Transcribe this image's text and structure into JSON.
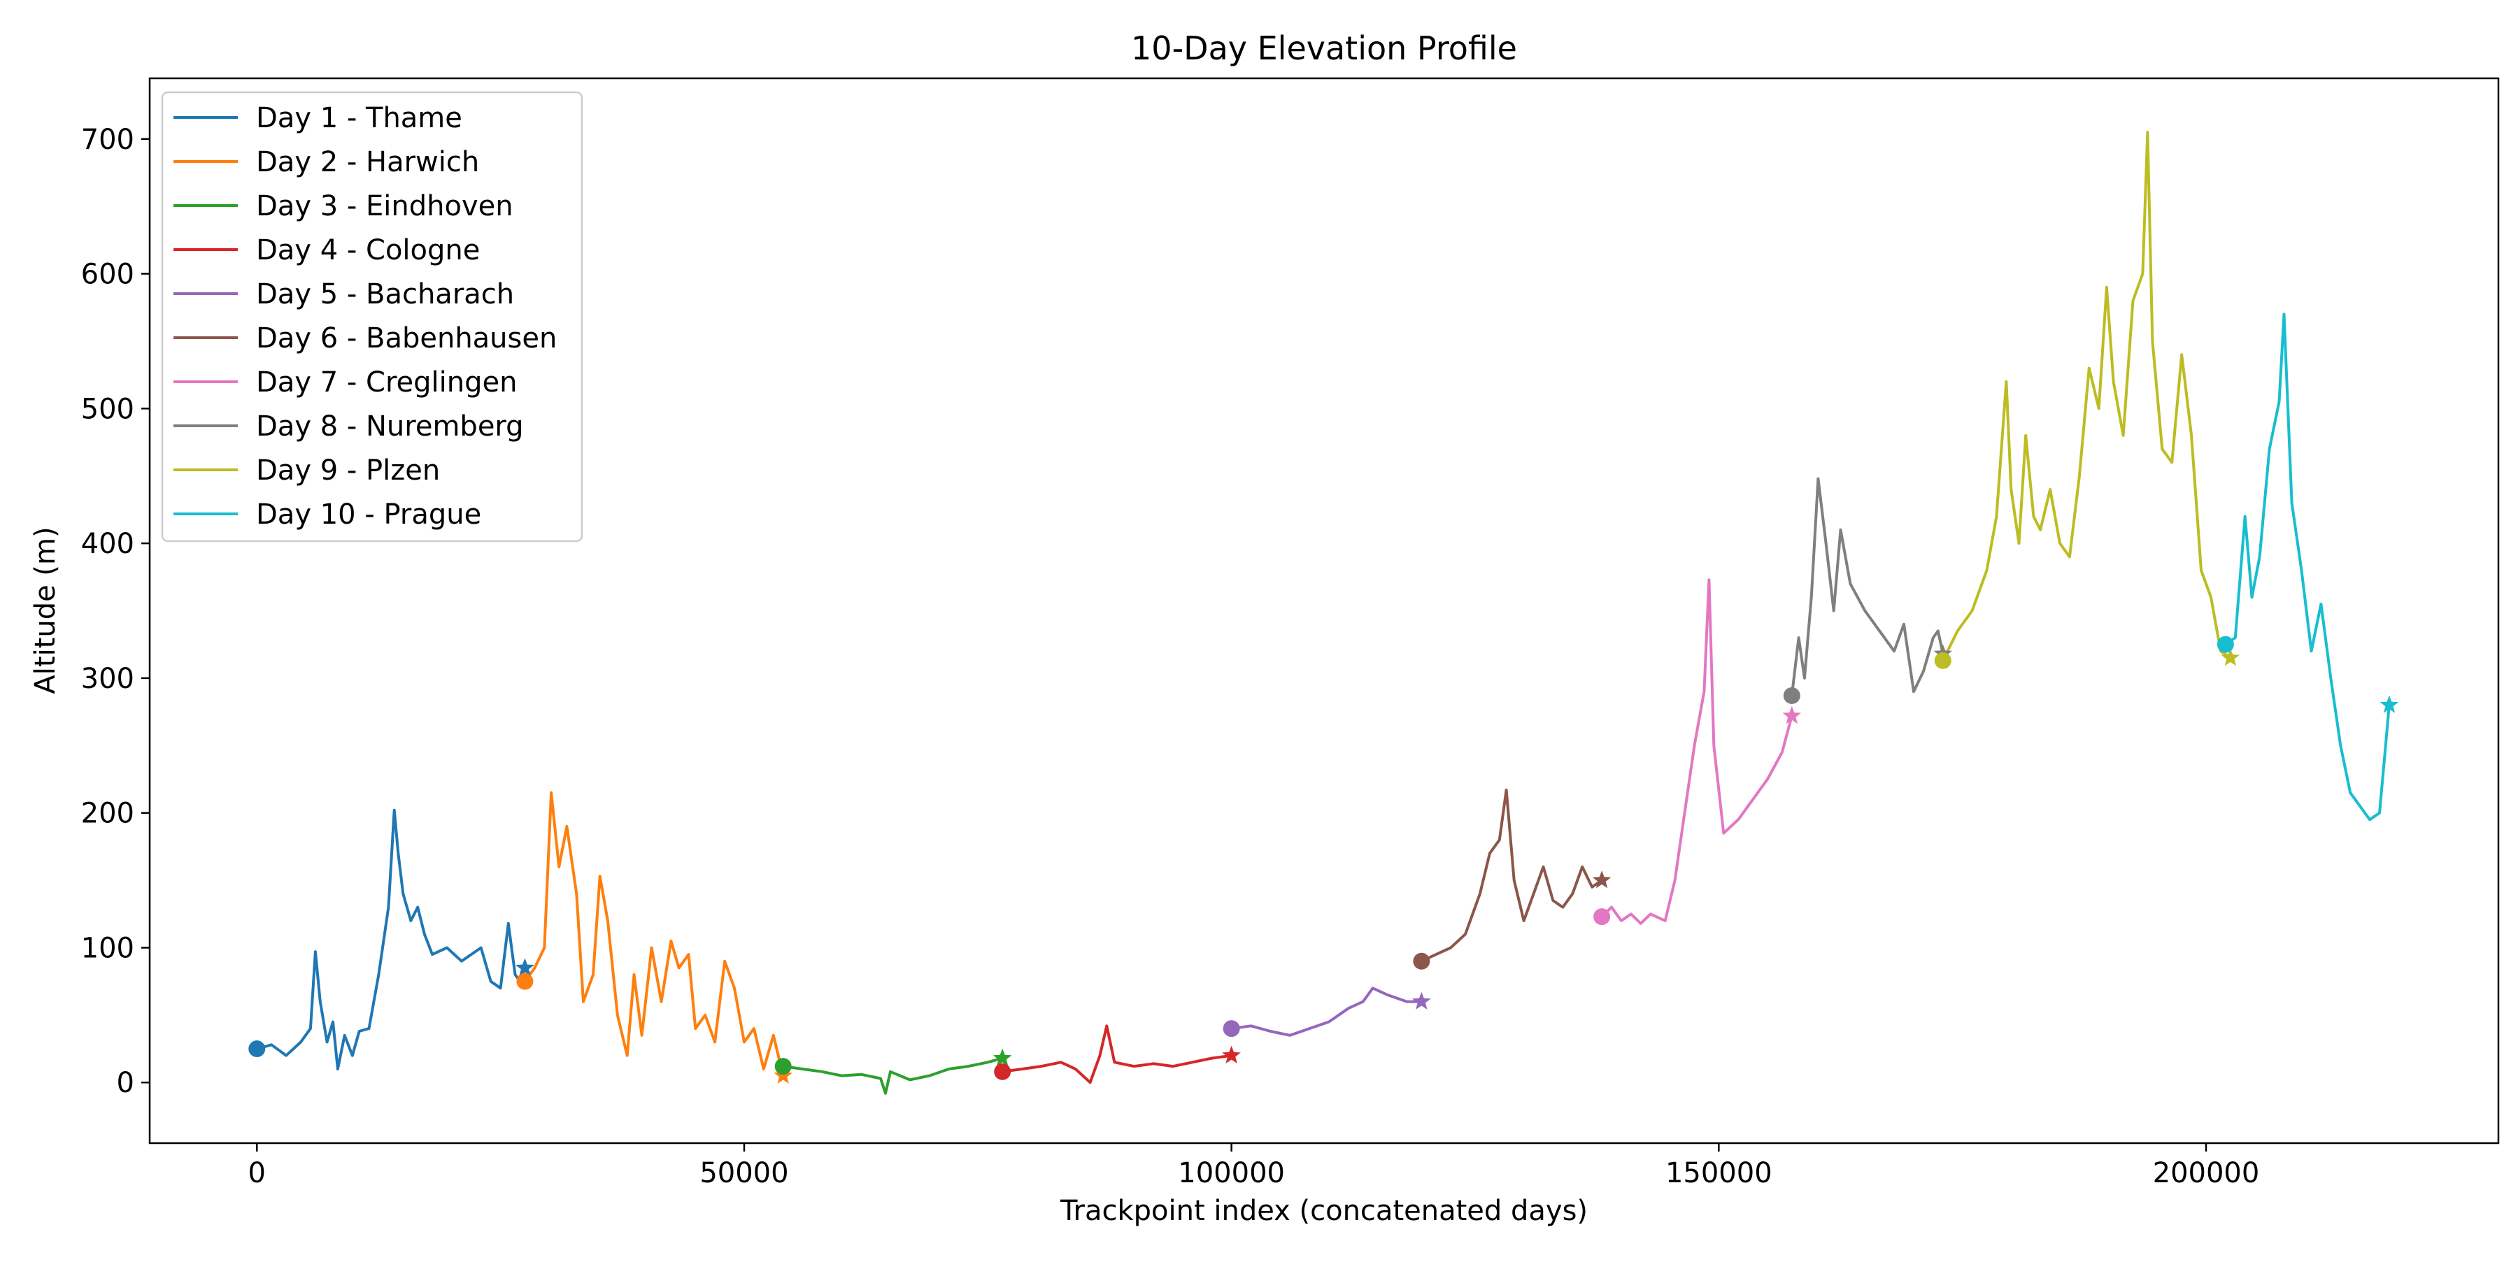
{
  "chart_data": {
    "type": "line",
    "title": "10-Day Elevation Profile",
    "xlabel": "Trackpoint index (concatenated days)",
    "ylabel": "Altitude (m)",
    "xlim": [
      -11000,
      230000
    ],
    "ylim": [
      -45,
      745
    ],
    "xticks": [
      0,
      50000,
      100000,
      150000,
      200000
    ],
    "xtick_labels": [
      "0",
      "50000",
      "100000",
      "150000",
      "200000"
    ],
    "yticks": [
      0,
      100,
      200,
      300,
      400,
      500,
      600,
      700
    ],
    "ytick_labels": [
      "0",
      "100",
      "200",
      "300",
      "400",
      "500",
      "600",
      "700"
    ],
    "grid": false,
    "legend_position": "top-left",
    "start_marker": "circle",
    "end_marker": "star",
    "series": [
      {
        "name": "Day 1 - Thame",
        "color": "#1f77b4",
        "x": [
          0,
          1500,
          3000,
          4500,
          5500,
          6000,
          6500,
          7200,
          7800,
          8300,
          9000,
          9800,
          10500,
          11500,
          12500,
          13500,
          14100,
          14500,
          15000,
          15800,
          16500,
          17200,
          18000,
          19500,
          21000,
          22000,
          23000,
          24000,
          25000,
          25800,
          26500,
          27000,
          27500
        ],
        "y": [
          25,
          28,
          20,
          30,
          40,
          97,
          60,
          30,
          45,
          10,
          35,
          20,
          38,
          40,
          80,
          130,
          202,
          170,
          140,
          120,
          130,
          110,
          95,
          100,
          90,
          95,
          100,
          75,
          70,
          118,
          80,
          75,
          85
        ]
      },
      {
        "name": "Day 2 - Harwich",
        "color": "#ff7f0e",
        "x": [
          27500,
          28500,
          29500,
          30200,
          31000,
          31800,
          32800,
          33500,
          34500,
          35200,
          36000,
          37000,
          38000,
          38700,
          39500,
          40500,
          41500,
          42500,
          43300,
          44300,
          45000,
          46000,
          47000,
          48000,
          49000,
          50000,
          51000,
          52000,
          53000,
          54000
        ],
        "y": [
          75,
          85,
          100,
          215,
          160,
          190,
          140,
          60,
          80,
          153,
          120,
          50,
          20,
          80,
          35,
          100,
          60,
          105,
          85,
          95,
          40,
          50,
          30,
          90,
          70,
          30,
          40,
          10,
          35,
          5
        ]
      },
      {
        "name": "Day 3 - Eindhoven",
        "color": "#2ca02c",
        "x": [
          54000,
          56000,
          58000,
          60000,
          62000,
          64000,
          64500,
          65000,
          67000,
          69000,
          71000,
          73000,
          75000,
          76500
        ],
        "y": [
          12,
          10,
          8,
          5,
          6,
          3,
          -8,
          8,
          2,
          5,
          10,
          12,
          15,
          18
        ]
      },
      {
        "name": "Day 4 - Cologne",
        "color": "#d62728",
        "x": [
          76500,
          78500,
          80500,
          82500,
          84000,
          85500,
          86500,
          87200,
          88000,
          90000,
          92000,
          94000,
          96000,
          98000,
          100000
        ],
        "y": [
          8,
          10,
          12,
          15,
          10,
          0,
          20,
          42,
          15,
          12,
          14,
          12,
          15,
          18,
          20
        ]
      },
      {
        "name": "Day 5 - Bacharach",
        "color": "#9467bd",
        "x": [
          100000,
          102000,
          104000,
          106000,
          108000,
          110000,
          112000,
          113500,
          114500,
          116000,
          118000,
          119500
        ],
        "y": [
          40,
          42,
          38,
          35,
          40,
          45,
          55,
          60,
          70,
          65,
          60,
          60
        ]
      },
      {
        "name": "Day 6 - Babenhausen",
        "color": "#8c564b",
        "x": [
          119500,
          121000,
          122500,
          124000,
          125500,
          126500,
          127500,
          128200,
          129000,
          130000,
          131000,
          132000,
          133000,
          134000,
          135000,
          136000,
          137000,
          138000
        ],
        "y": [
          90,
          95,
          100,
          110,
          140,
          170,
          180,
          217,
          150,
          120,
          140,
          160,
          135,
          130,
          140,
          160,
          145,
          150
        ]
      },
      {
        "name": "Day 7 - Creglingen",
        "color": "#e377c2",
        "x": [
          138000,
          139000,
          140000,
          141000,
          142000,
          143000,
          144500,
          145500,
          146500,
          147500,
          148500,
          149000,
          149500,
          150500,
          152000,
          153500,
          155000,
          156500,
          157500
        ],
        "y": [
          123,
          130,
          120,
          125,
          118,
          125,
          120,
          150,
          200,
          250,
          290,
          373,
          250,
          185,
          195,
          210,
          225,
          245,
          272
        ]
      },
      {
        "name": "Day 8 - Nuremberg",
        "color": "#7f7f7f",
        "x": [
          157500,
          158200,
          158800,
          159500,
          160200,
          161000,
          161800,
          162500,
          163500,
          165000,
          166500,
          168000,
          169000,
          170000,
          171000,
          172000,
          172500,
          173000
        ],
        "y": [
          287,
          330,
          300,
          360,
          448,
          400,
          350,
          410,
          370,
          350,
          335,
          320,
          340,
          290,
          305,
          330,
          335,
          318
        ]
      },
      {
        "name": "Day 9 - Plzen",
        "color": "#bcbd22",
        "x": [
          173000,
          174500,
          176000,
          177500,
          178500,
          179500,
          180000,
          180800,
          181500,
          182300,
          183000,
          184000,
          185000,
          186000,
          187000,
          188000,
          189000,
          189800,
          190500,
          191500,
          192500,
          193500,
          194000,
          194500,
          195500,
          196500,
          197500,
          198500,
          199500,
          200500,
          201500,
          202500
        ],
        "y": [
          313,
          335,
          350,
          380,
          420,
          520,
          440,
          400,
          480,
          420,
          410,
          440,
          400,
          390,
          450,
          530,
          500,
          590,
          520,
          480,
          580,
          600,
          705,
          550,
          470,
          460,
          540,
          480,
          380,
          360,
          320,
          315
        ]
      },
      {
        "name": "Day 10 - Prague",
        "color": "#17becf",
        "x": [
          202000,
          203000,
          204000,
          204700,
          205500,
          206500,
          207500,
          208000,
          208800,
          209800,
          210800,
          211800,
          212800,
          213800,
          214800,
          215800,
          216800,
          217800,
          218300,
          218800
        ],
        "y": [
          325,
          330,
          420,
          360,
          390,
          470,
          505,
          570,
          430,
          380,
          320,
          355,
          300,
          250,
          215,
          205,
          195,
          200,
          240,
          280
        ]
      }
    ]
  }
}
